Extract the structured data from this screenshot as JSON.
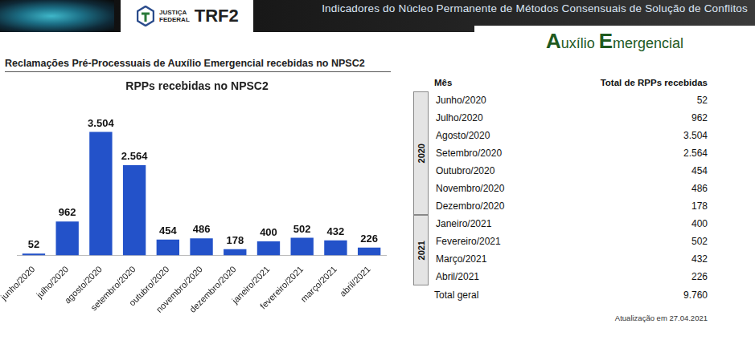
{
  "header": {
    "institution": "JUSTIÇA FEDERAL",
    "brand": "TRF2",
    "title": "Indicadores do Núcleo Permanente de Métodos Consensuais de Solução de Conflitos",
    "topic": "Auxílio Emergencial"
  },
  "subtitle": "Reclamações Pré-Processuais de Auxílio Emergencial recebidas no NPSC2",
  "chart_data": {
    "type": "bar",
    "title": "RPPs recebidas no NPSC2",
    "categories": [
      "junho/2020",
      "julho/2020",
      "agosto/2020",
      "setembro/2020",
      "outubro/2020",
      "novembro/2020",
      "dezembro/2020",
      "janeiro/2021",
      "fevereiro/2021",
      "março/2021",
      "abril/2021"
    ],
    "values": [
      52,
      962,
      3504,
      2564,
      454,
      486,
      178,
      400,
      502,
      432,
      226
    ],
    "value_labels": [
      "52",
      "962",
      "3.504",
      "2.564",
      "454",
      "486",
      "178",
      "400",
      "502",
      "432",
      "226"
    ],
    "color": "#2352c9",
    "ylim": [
      0,
      4000
    ],
    "grid": false,
    "data_labels": true,
    "tick_labels": "x"
  },
  "table": {
    "columns": [
      "Mês",
      "Total de RPPs recebidas"
    ],
    "groups": [
      {
        "year": "2020",
        "rows": [
          [
            "Junho/2020",
            "52"
          ],
          [
            "Julho/2020",
            "962"
          ],
          [
            "Agosto/2020",
            "3.504"
          ],
          [
            "Setembro/2020",
            "2.564"
          ],
          [
            "Outubro/2020",
            "454"
          ],
          [
            "Novembro/2020",
            "486"
          ],
          [
            "Dezembro/2020",
            "178"
          ]
        ]
      },
      {
        "year": "2021",
        "rows": [
          [
            "Janeiro/2021",
            "400"
          ],
          [
            "Fevereiro/2021",
            "502"
          ],
          [
            "Março/2021",
            "432"
          ],
          [
            "Abril/2021",
            "226"
          ]
        ]
      }
    ],
    "total": [
      "Total geral",
      "9.760"
    ]
  },
  "footnote": "Atualização em 27.04.2021"
}
